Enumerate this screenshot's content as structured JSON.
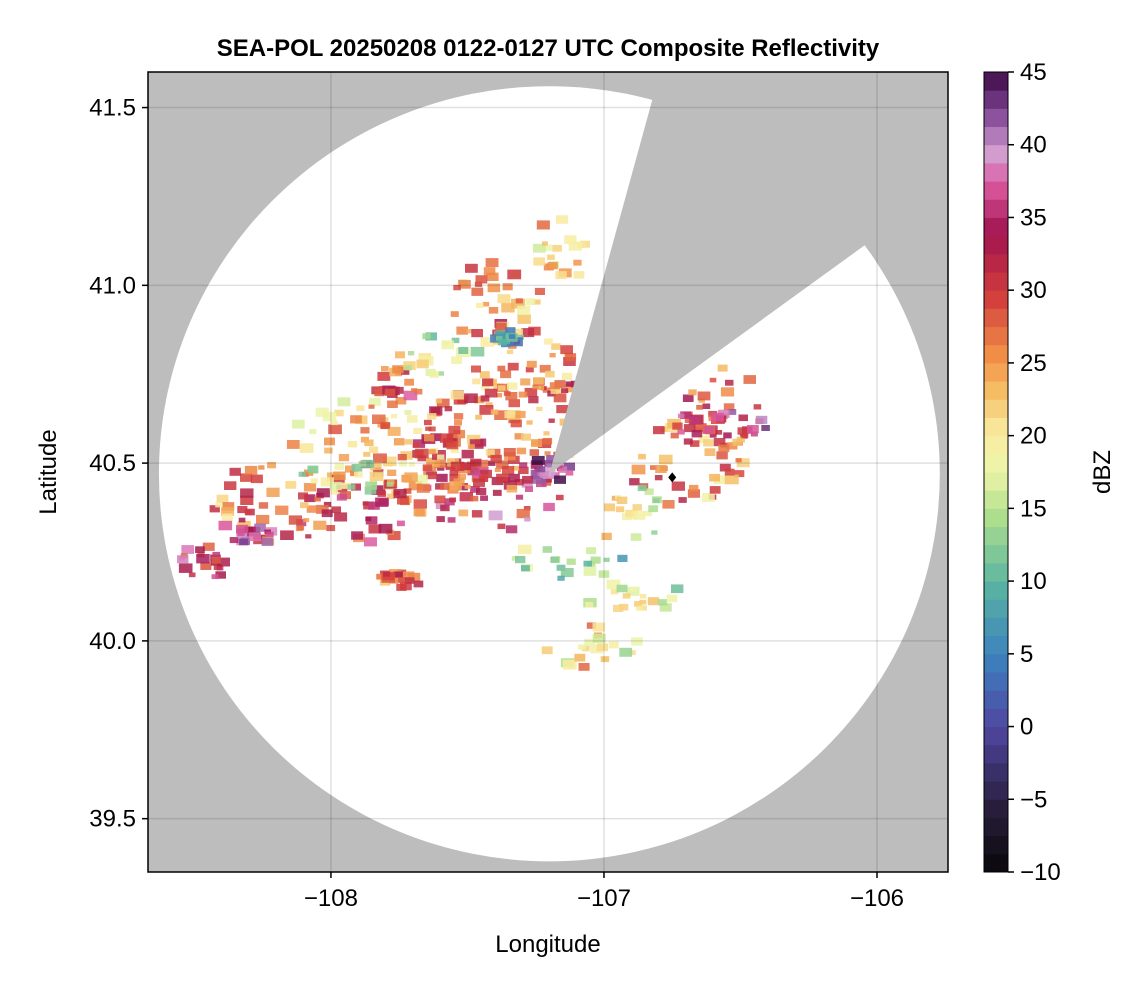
{
  "chart_data": {
    "type": "heatmap",
    "title": "SEA-POL 20250208 0122-0127 UTC Composite Reflectivity",
    "xlabel": "Longitude",
    "ylabel": "Latitude",
    "xlim": [
      -108.67,
      -105.74
    ],
    "ylim": [
      39.35,
      41.6
    ],
    "x_ticks": [
      -108,
      -107,
      -106
    ],
    "x_tick_labels": [
      "−108",
      "−107",
      "−106"
    ],
    "y_ticks": [
      39.5,
      40.0,
      40.5,
      41.0,
      41.5
    ],
    "y_tick_labels": [
      "39.5",
      "40.0",
      "40.5",
      "41.0",
      "41.5"
    ],
    "grid": true,
    "radar": {
      "center_lon": -107.2,
      "center_lat": 40.47,
      "range_lon_extent": 1.43,
      "range_lat_extent": 1.09,
      "blocked_sectors": [
        {
          "from_lon": -106.82,
          "from_lat": 41.53,
          "to_lon": -107.2,
          "to_lat": 40.47
        },
        {
          "from_lon": -106.05,
          "from_lat": 41.11,
          "to_lon": -107.2,
          "to_lat": 40.47
        }
      ]
    },
    "marker": {
      "lon": -106.75,
      "lat": 40.46,
      "symbol": "diamond"
    },
    "colorbar": {
      "label": "dBZ",
      "range": [
        -10,
        45
      ],
      "ticks": [
        45,
        40,
        35,
        30,
        25,
        20,
        15,
        10,
        5,
        0,
        -5,
        -10
      ],
      "tick_labels": [
        "45",
        "40",
        "35",
        "30",
        "25",
        "20",
        "15",
        "10",
        "5",
        "0",
        "−5",
        "−10"
      ],
      "colormap": "Spectral (reversed)"
    },
    "colors": {
      "background_outside_range": "#bdbdbd",
      "no_echo": "#ffffff",
      "frame": "#000000",
      "grid": "#cccccc"
    },
    "echo_blobs": [
      {
        "lon": -107.45,
        "lat": 40.4,
        "rlon": 0.3,
        "rlat": 0.1,
        "dbz": 34
      },
      {
        "lon": -107.6,
        "lat": 40.45,
        "rlon": 0.35,
        "rlat": 0.12,
        "dbz": 28
      },
      {
        "lon": -107.35,
        "lat": 40.6,
        "rlon": 0.3,
        "rlat": 0.15,
        "dbz": 26
      },
      {
        "lon": -107.3,
        "lat": 40.75,
        "rlon": 0.22,
        "rlat": 0.15,
        "dbz": 27
      },
      {
        "lon": -107.4,
        "lat": 40.95,
        "rlon": 0.18,
        "rlat": 0.12,
        "dbz": 24
      },
      {
        "lon": -107.15,
        "lat": 41.1,
        "rlon": 0.1,
        "rlat": 0.1,
        "dbz": 22
      },
      {
        "lon": -107.85,
        "lat": 40.55,
        "rlon": 0.3,
        "rlat": 0.13,
        "dbz": 24
      },
      {
        "lon": -107.8,
        "lat": 40.72,
        "rlon": 0.15,
        "rlat": 0.05,
        "dbz": 30
      },
      {
        "lon": -107.6,
        "lat": 40.8,
        "rlon": 0.15,
        "rlat": 0.06,
        "dbz": 17
      },
      {
        "lon": -107.9,
        "lat": 40.35,
        "rlon": 0.25,
        "rlat": 0.08,
        "dbz": 31
      },
      {
        "lon": -108.2,
        "lat": 40.38,
        "rlon": 0.25,
        "rlat": 0.12,
        "dbz": 27
      },
      {
        "lon": -108.3,
        "lat": 40.3,
        "rlon": 0.1,
        "rlat": 0.04,
        "dbz": 37
      },
      {
        "lon": -108.45,
        "lat": 40.22,
        "rlon": 0.1,
        "rlat": 0.05,
        "dbz": 32
      },
      {
        "lon": -107.95,
        "lat": 40.45,
        "rlon": 0.2,
        "rlat": 0.05,
        "dbz": 17
      },
      {
        "lon": -107.75,
        "lat": 40.17,
        "rlon": 0.08,
        "rlat": 0.03,
        "dbz": 29
      },
      {
        "lon": -106.7,
        "lat": 40.5,
        "rlon": 0.22,
        "rlat": 0.12,
        "dbz": 26
      },
      {
        "lon": -106.55,
        "lat": 40.65,
        "rlon": 0.15,
        "rlat": 0.12,
        "dbz": 30
      },
      {
        "lon": -106.6,
        "lat": 40.6,
        "rlon": 0.2,
        "rlat": 0.05,
        "dbz": 35
      },
      {
        "lon": -106.9,
        "lat": 40.35,
        "rlon": 0.15,
        "rlat": 0.08,
        "dbz": 19
      },
      {
        "lon": -107.1,
        "lat": 40.22,
        "rlon": 0.25,
        "rlat": 0.05,
        "dbz": 12
      },
      {
        "lon": -106.9,
        "lat": 40.12,
        "rlon": 0.2,
        "rlat": 0.04,
        "dbz": 19
      },
      {
        "lon": -107.05,
        "lat": 39.98,
        "rlon": 0.18,
        "rlat": 0.06,
        "dbz": 20
      },
      {
        "lon": -107.2,
        "lat": 40.47,
        "rlon": 0.08,
        "rlat": 0.04,
        "dbz": 39
      },
      {
        "lon": -107.35,
        "lat": 40.85,
        "rlon": 0.05,
        "rlat": 0.02,
        "dbz": 8
      }
    ]
  }
}
